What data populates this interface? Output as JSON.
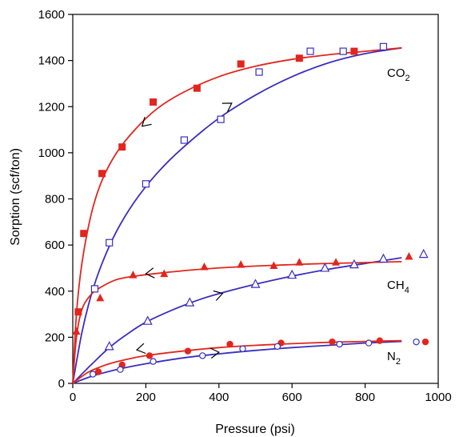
{
  "chart_data": {
    "type": "scatter",
    "title": "",
    "xlabel": "Pressure (psi)",
    "ylabel": "Sorption (scf/ton)",
    "xlim": [
      0,
      1000
    ],
    "ylim": [
      0,
      1600
    ],
    "xticks": [
      0,
      200,
      400,
      600,
      800,
      1000
    ],
    "yticks": [
      0,
      200,
      400,
      600,
      800,
      1000,
      1200,
      1400,
      1600
    ],
    "grid": false,
    "colors": {
      "adsorption": "#3a2fbf",
      "desorption": "#e2261d"
    },
    "gases": [
      {
        "key": "co2",
        "label_main": "CO",
        "label_sub": "2",
        "label_at": [
          860,
          1330
        ],
        "desorption_points": [
          [
            15,
            310
          ],
          [
            30,
            650
          ],
          [
            80,
            910
          ],
          [
            135,
            1025
          ],
          [
            220,
            1220
          ],
          [
            340,
            1280
          ],
          [
            460,
            1385
          ],
          [
            620,
            1410
          ],
          [
            770,
            1440
          ]
        ],
        "adsorption_points": [
          [
            60,
            410
          ],
          [
            100,
            610
          ],
          [
            200,
            865
          ],
          [
            305,
            1055
          ],
          [
            405,
            1145
          ],
          [
            510,
            1350
          ],
          [
            650,
            1440
          ],
          [
            740,
            1440
          ],
          [
            850,
            1460
          ]
        ],
        "desorption_curve": [
          [
            0,
            0
          ],
          [
            10,
            300
          ],
          [
            25,
            520
          ],
          [
            50,
            730
          ],
          [
            80,
            880
          ],
          [
            120,
            1000
          ],
          [
            170,
            1100
          ],
          [
            230,
            1190
          ],
          [
            300,
            1260
          ],
          [
            400,
            1330
          ],
          [
            500,
            1375
          ],
          [
            600,
            1405
          ],
          [
            700,
            1425
          ],
          [
            800,
            1440
          ],
          [
            900,
            1455
          ]
        ],
        "adsorption_curve": [
          [
            0,
            0
          ],
          [
            25,
            220
          ],
          [
            50,
            380
          ],
          [
            80,
            520
          ],
          [
            120,
            660
          ],
          [
            170,
            790
          ],
          [
            230,
            910
          ],
          [
            300,
            1020
          ],
          [
            400,
            1150
          ],
          [
            500,
            1250
          ],
          [
            600,
            1330
          ],
          [
            700,
            1390
          ],
          [
            800,
            1430
          ],
          [
            900,
            1455
          ]
        ],
        "desorption_arrow": [
          190,
          1115
        ],
        "adsorption_arrow": [
          435,
          1215
        ]
      },
      {
        "key": "ch4",
        "label_main": "CH",
        "label_sub": "4",
        "label_at": [
          860,
          410
        ],
        "desorption_points": [
          [
            10,
            225
          ],
          [
            75,
            370
          ],
          [
            165,
            470
          ],
          [
            250,
            475
          ],
          [
            360,
            505
          ],
          [
            460,
            515
          ],
          [
            550,
            510
          ],
          [
            620,
            525
          ],
          [
            720,
            525
          ],
          [
            920,
            550
          ]
        ],
        "adsorption_points": [
          [
            100,
            160
          ],
          [
            205,
            270
          ],
          [
            320,
            350
          ],
          [
            500,
            430
          ],
          [
            600,
            470
          ],
          [
            690,
            500
          ],
          [
            770,
            515
          ],
          [
            850,
            540
          ],
          [
            960,
            560
          ]
        ],
        "desorption_curve": [
          [
            0,
            0
          ],
          [
            10,
            200
          ],
          [
            25,
            320
          ],
          [
            50,
            385
          ],
          [
            80,
            420
          ],
          [
            120,
            450
          ],
          [
            170,
            465
          ],
          [
            250,
            480
          ],
          [
            350,
            495
          ],
          [
            450,
            505
          ],
          [
            550,
            512
          ],
          [
            650,
            518
          ],
          [
            750,
            522
          ],
          [
            900,
            528
          ]
        ],
        "adsorption_curve": [
          [
            0,
            0
          ],
          [
            50,
            80
          ],
          [
            100,
            155
          ],
          [
            150,
            215
          ],
          [
            200,
            265
          ],
          [
            275,
            320
          ],
          [
            350,
            365
          ],
          [
            425,
            400
          ],
          [
            500,
            430
          ],
          [
            600,
            465
          ],
          [
            700,
            495
          ],
          [
            800,
            520
          ],
          [
            900,
            545
          ]
        ],
        "desorption_arrow": [
          200,
          475
        ],
        "adsorption_arrow": [
          410,
          390
        ]
      },
      {
        "key": "n2",
        "label_main": "N",
        "label_sub": "2",
        "label_at": [
          860,
          100
        ],
        "desorption_points": [
          [
            70,
            50
          ],
          [
            135,
            80
          ],
          [
            210,
            120
          ],
          [
            315,
            140
          ],
          [
            430,
            170
          ],
          [
            570,
            175
          ],
          [
            710,
            180
          ],
          [
            840,
            185
          ],
          [
            965,
            180
          ]
        ],
        "adsorption_points": [
          [
            55,
            40
          ],
          [
            130,
            60
          ],
          [
            220,
            95
          ],
          [
            355,
            120
          ],
          [
            465,
            150
          ],
          [
            560,
            160
          ],
          [
            730,
            170
          ],
          [
            810,
            175
          ],
          [
            940,
            180
          ]
        ],
        "desorption_curve": [
          [
            0,
            0
          ],
          [
            25,
            30
          ],
          [
            50,
            55
          ],
          [
            100,
            85
          ],
          [
            150,
            105
          ],
          [
            200,
            120
          ],
          [
            300,
            140
          ],
          [
            400,
            155
          ],
          [
            500,
            165
          ],
          [
            600,
            172
          ],
          [
            700,
            178
          ],
          [
            800,
            182
          ],
          [
            900,
            185
          ]
        ],
        "adsorption_curve": [
          [
            0,
            0
          ],
          [
            50,
            30
          ],
          [
            100,
            52
          ],
          [
            150,
            70
          ],
          [
            200,
            85
          ],
          [
            300,
            110
          ],
          [
            400,
            128
          ],
          [
            500,
            143
          ],
          [
            600,
            155
          ],
          [
            700,
            165
          ],
          [
            800,
            175
          ],
          [
            900,
            182
          ]
        ],
        "desorption_arrow": [
          175,
          145
        ],
        "adsorption_arrow": [
          400,
          135
        ]
      }
    ]
  }
}
